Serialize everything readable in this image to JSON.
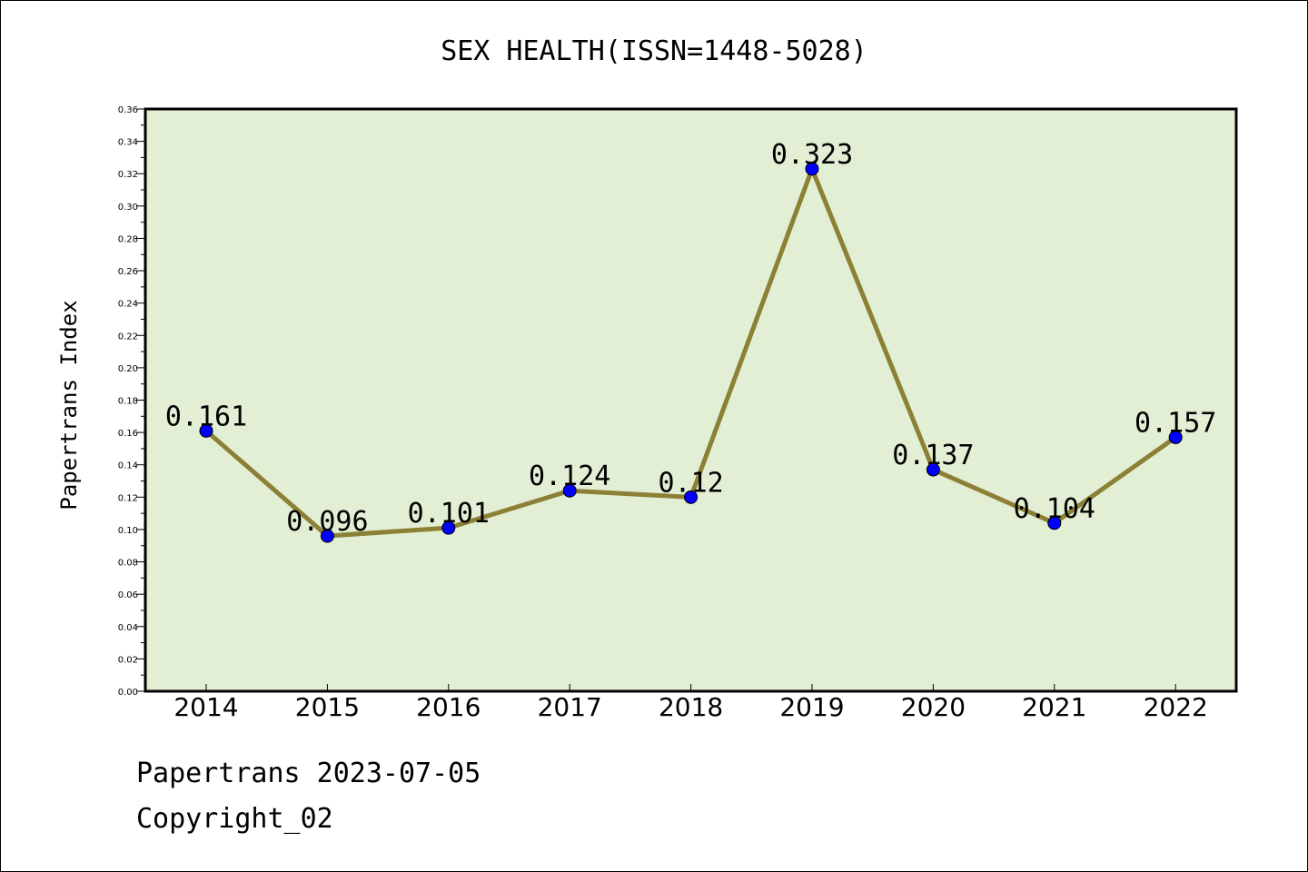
{
  "chart_data": {
    "type": "line",
    "title": "SEX HEALTH(ISSN=1448-5028)",
    "xlabel": "",
    "ylabel": "Papertrans Index",
    "categories": [
      "2014",
      "2015",
      "2016",
      "2017",
      "2018",
      "2019",
      "2020",
      "2021",
      "2022"
    ],
    "series": [
      {
        "values": [
          0.161,
          0.096,
          0.101,
          0.124,
          0.12,
          0.323,
          0.137,
          0.104,
          0.157
        ],
        "labels": [
          "0.161",
          "0.096",
          "0.101",
          "0.124",
          "0.12",
          "0.323",
          "0.137",
          "0.104",
          "0.157"
        ]
      }
    ],
    "ylim": [
      0,
      0.36
    ],
    "yticks": [
      "0.00",
      "0.02",
      "0.04",
      "0.06",
      "0.08",
      "0.10",
      "0.12",
      "0.14",
      "0.16",
      "0.18",
      "0.20",
      "0.22",
      "0.24",
      "0.26",
      "0.28",
      "0.30",
      "0.32",
      "0.34",
      "0.36"
    ],
    "grid": false,
    "colors": {
      "plot_background": "#e2efd4",
      "line": "#8b8035",
      "marker": "#0000ff"
    }
  },
  "footer": {
    "line1": "Papertrans 2023-07-05",
    "line2": "Copyright_02"
  }
}
